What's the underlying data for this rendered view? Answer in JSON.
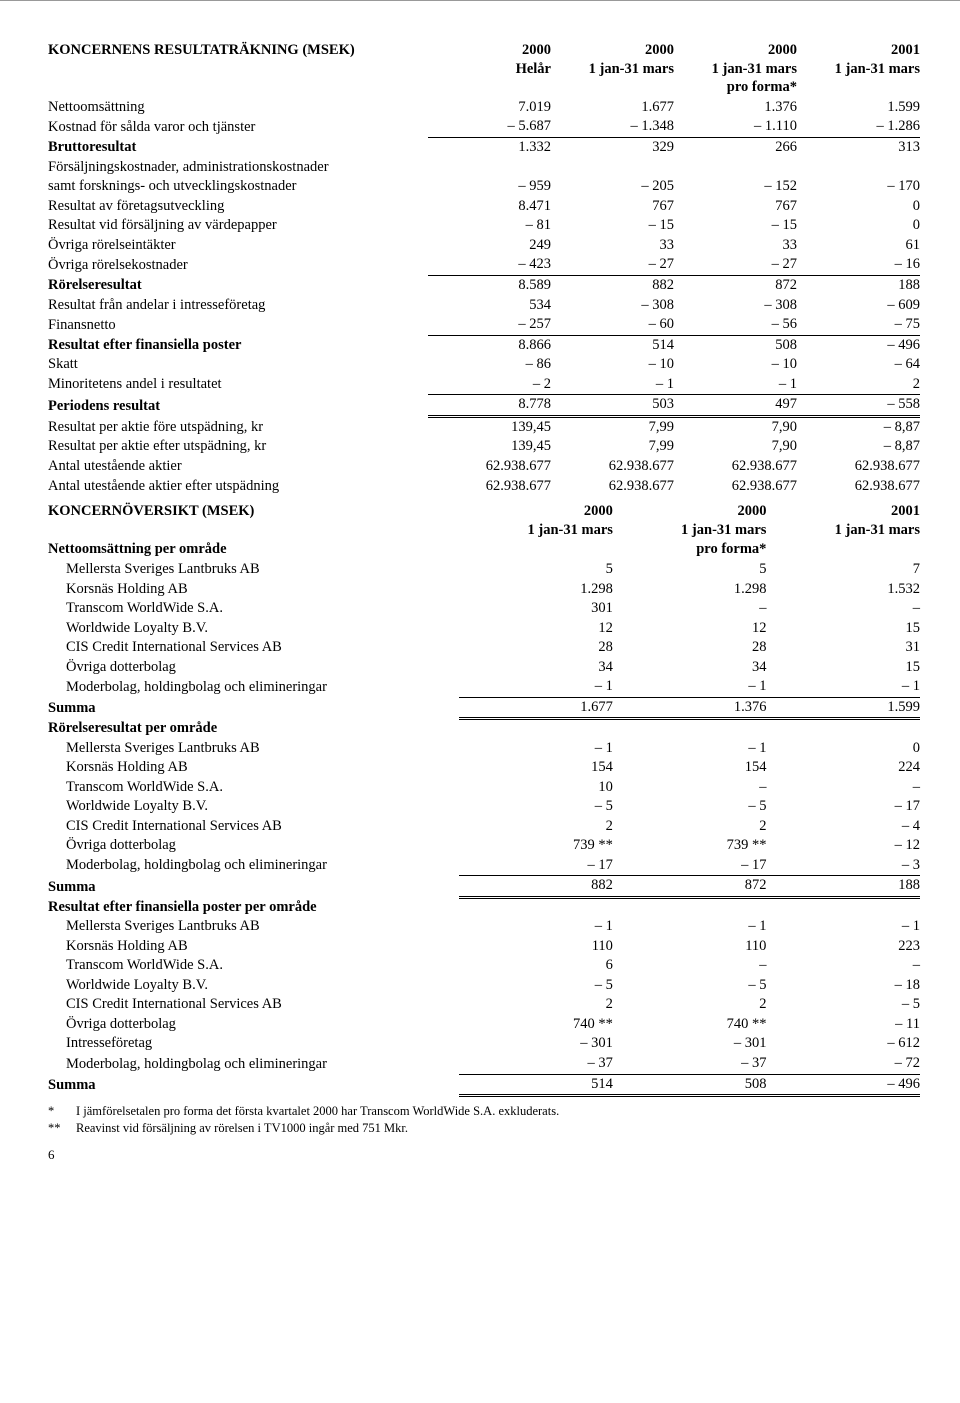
{
  "table1": {
    "title": "KONCERNENS RESULTATRÄKNING (MSEK)",
    "headers": {
      "c1a": "2000",
      "c1b": "Helår",
      "c2a": "2000",
      "c2b": "1 jan-31 mars",
      "c3a": "2000",
      "c3b": "1 jan-31 mars",
      "c3c": "pro forma*",
      "c4a": "2001",
      "c4b": "1 jan-31 mars"
    },
    "rows": [
      {
        "label": "Nettoomsättning",
        "c1": "7.019",
        "c2": "1.677",
        "c3": "1.376",
        "c4": "1.599"
      },
      {
        "label": "Kostnad för sålda varor och tjänster",
        "c1": "– 5.687",
        "c2": "– 1.348",
        "c3": "– 1.110",
        "c4": "– 1.286",
        "ul": true
      },
      {
        "label": "Bruttoresultat",
        "c1": "1.332",
        "c2": "329",
        "c3": "266",
        "c4": "313",
        "bold": true
      },
      {
        "label": "Försäljningskostnader, administrationskostnader"
      },
      {
        "label": "samt forsknings- och utvecklingskostnader",
        "c1": "– 959",
        "c2": "– 205",
        "c3": "– 152",
        "c4": "– 170"
      },
      {
        "label": "Resultat av företagsutveckling",
        "c1": "8.471",
        "c2": "767",
        "c3": "767",
        "c4": "0"
      },
      {
        "label": "Resultat vid försäljning av värdepapper",
        "c1": "– 81",
        "c2": "– 15",
        "c3": "– 15",
        "c4": "0"
      },
      {
        "label": "Övriga rörelseintäkter",
        "c1": "249",
        "c2": "33",
        "c3": "33",
        "c4": "61"
      },
      {
        "label": "Övriga rörelsekostnader",
        "c1": "– 423",
        "c2": "– 27",
        "c3": "– 27",
        "c4": "– 16",
        "ul": true
      },
      {
        "label": "Rörelseresultat",
        "c1": "8.589",
        "c2": "882",
        "c3": "872",
        "c4": "188",
        "bold": true
      },
      {
        "label": "Resultat från andelar i intresseföretag",
        "c1": "534",
        "c2": "– 308",
        "c3": "– 308",
        "c4": "– 609"
      },
      {
        "label": "Finansnetto",
        "c1": "– 257",
        "c2": "– 60",
        "c3": "– 56",
        "c4": "– 75",
        "ul": true
      },
      {
        "label": "Resultat efter finansiella poster",
        "c1": "8.866",
        "c2": "514",
        "c3": "508",
        "c4": "– 496",
        "bold": true
      },
      {
        "label": "Skatt",
        "c1": "– 86",
        "c2": "– 10",
        "c3": "– 10",
        "c4": "– 64"
      },
      {
        "label": "Minoritetens andel i resultatet",
        "c1": "– 2",
        "c2": "– 1",
        "c3": "– 1",
        "c4": "2",
        "ul": true
      },
      {
        "label": "Periodens resultat",
        "c1": "8.778",
        "c2": "503",
        "c3": "497",
        "c4": "– 558",
        "bold": true,
        "dbl": true
      },
      {
        "label": "Resultat per aktie före utspädning, kr",
        "c1": "139,45",
        "c2": "7,99",
        "c3": "7,90",
        "c4": "– 8,87"
      },
      {
        "label": "Resultat per aktie efter utspädning, kr",
        "c1": "139,45",
        "c2": "7,99",
        "c3": "7,90",
        "c4": "– 8,87"
      },
      {
        "label": "Antal utestående aktier",
        "c1": "62.938.677",
        "c2": "62.938.677",
        "c3": "62.938.677",
        "c4": "62.938.677"
      },
      {
        "label": "Antal utestående aktier efter utspädning",
        "c1": "62.938.677",
        "c2": "62.938.677",
        "c3": "62.938.677",
        "c4": "62.938.677"
      }
    ]
  },
  "table2": {
    "title": "KONCERNÖVERSIKT (MSEK)",
    "headers": {
      "c1a": "2000",
      "c1b": "1 jan-31 mars",
      "c2a": "2000",
      "c2b": "1 jan-31 mars",
      "c2c": "pro forma*",
      "c3a": "2001",
      "c3b": "1 jan-31 mars"
    },
    "sections": [
      {
        "heading": "Nettoomsättning per område",
        "rows": [
          {
            "label": "Mellersta Sveriges Lantbruks AB",
            "c1": "5",
            "c2": "5",
            "c3": "7"
          },
          {
            "label": "Korsnäs Holding AB",
            "c1": "1.298",
            "c2": "1.298",
            "c3": "1.532"
          },
          {
            "label": "Transcom WorldWide S.A.",
            "c1": "301",
            "c2": "–",
            "c3": "–"
          },
          {
            "label": "Worldwide Loyalty B.V.",
            "c1": "12",
            "c2": "12",
            "c3": "15"
          },
          {
            "label": "CIS Credit International Services AB",
            "c1": "28",
            "c2": "28",
            "c3": "31"
          },
          {
            "label": "Övriga dotterbolag",
            "c1": "34",
            "c2": "34",
            "c3": "15"
          },
          {
            "label": "Moderbolag, holdingbolag och elimineringar",
            "c1": "– 1",
            "c2": "– 1",
            "c3": "– 1",
            "ul": true
          }
        ],
        "sum": {
          "label": "Summa",
          "c1": "1.677",
          "c2": "1.376",
          "c3": "1.599"
        }
      },
      {
        "heading": "Rörelseresultat per område",
        "rows": [
          {
            "label": "Mellersta Sveriges Lantbruks AB",
            "c1": "– 1",
            "c2": "– 1",
            "c3": "0"
          },
          {
            "label": "Korsnäs Holding AB",
            "c1": "154",
            "c2": "154",
            "c3": "224"
          },
          {
            "label": "Transcom WorldWide S.A.",
            "c1": "10",
            "c2": "–",
            "c3": "–"
          },
          {
            "label": "Worldwide Loyalty B.V.",
            "c1": "– 5",
            "c2": "– 5",
            "c3": "– 17"
          },
          {
            "label": "CIS Credit International Services AB",
            "c1": "2",
            "c2": "2",
            "c3": "– 4"
          },
          {
            "label": "Övriga dotterbolag",
            "c1": "739 **",
            "c2": "739 **",
            "c3": "– 12"
          },
          {
            "label": "Moderbolag, holdingbolag och elimineringar",
            "c1": "– 17",
            "c2": "– 17",
            "c3": "– 3",
            "ul": true
          }
        ],
        "sum": {
          "label": "Summa",
          "c1": "882",
          "c2": "872",
          "c3": "188"
        }
      },
      {
        "heading": "Resultat efter finansiella poster per område",
        "rows": [
          {
            "label": "Mellersta Sveriges Lantbruks AB",
            "c1": "– 1",
            "c2": "– 1",
            "c3": "– 1"
          },
          {
            "label": "Korsnäs Holding AB",
            "c1": "110",
            "c2": "110",
            "c3": "223"
          },
          {
            "label": "Transcom WorldWide S.A.",
            "c1": "6",
            "c2": "–",
            "c3": "–"
          },
          {
            "label": "Worldwide Loyalty B.V.",
            "c1": "– 5",
            "c2": "– 5",
            "c3": "– 18"
          },
          {
            "label": "CIS Credit International Services AB",
            "c1": "2",
            "c2": "2",
            "c3": "– 5"
          },
          {
            "label": "Övriga dotterbolag",
            "c1": "740 **",
            "c2": "740 **",
            "c3": "– 11"
          },
          {
            "label": "Intresseföretag",
            "c1": "– 301",
            "c2": "– 301",
            "c3": "– 612"
          },
          {
            "label": "Moderbolag, holdingbolag och elimineringar",
            "c1": "– 37",
            "c2": "– 37",
            "c3": "– 72",
            "ul": true
          }
        ],
        "sum": {
          "label": "Summa",
          "c1": "514",
          "c2": "508",
          "c3": "– 496"
        }
      }
    ]
  },
  "footnotes": [
    {
      "mark": "*",
      "text": "I jämförelsetalen pro forma det första kvartalet 2000 har Transcom WorldWide S.A. exkluderats."
    },
    {
      "mark": "**",
      "text": "Reavinst vid försäljning av rörelsen i TV1000 ingår med 751 Mkr."
    }
  ],
  "pagenum": "6"
}
